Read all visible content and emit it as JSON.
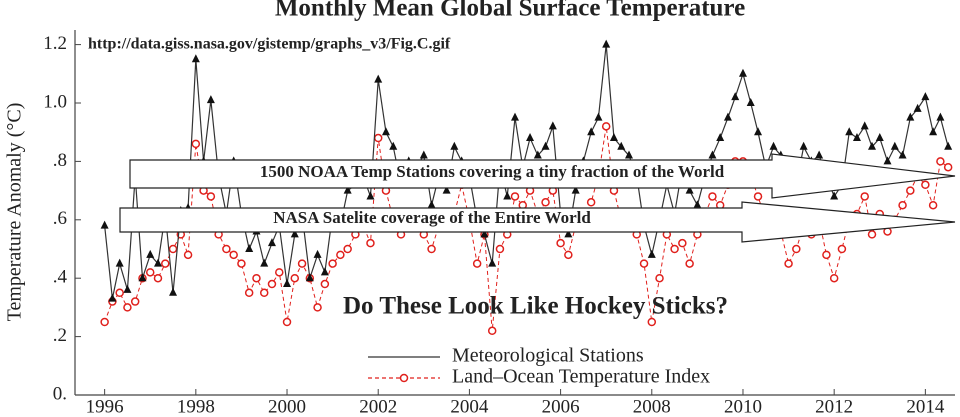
{
  "chart_data": {
    "type": "line",
    "title": "Monthly Mean Global Surface Temperature",
    "y_label": "Temperature Anomaly (°C)",
    "annotations": [
      "http://data.giss.nasa.gov/gistemp/graphs_v3/Fig.C.gif",
      "1500 NOAA Temp Stations covering a tiny fraction of the World",
      "NASA Satelite coverage of the Entire World",
      "Do These Look Like Hockey Sticks?"
    ],
    "xlim": [
      1995.35,
      2014.65
    ],
    "ylim": [
      0,
      1.25
    ],
    "xticks": [
      1996,
      1998,
      2000,
      2002,
      2004,
      2006,
      2008,
      2010,
      2012,
      2014
    ],
    "yticks": [
      {
        "value": 0,
        "label": "0."
      },
      {
        "value": 0.2,
        "label": ".2"
      },
      {
        "value": 0.4,
        "label": ".4"
      },
      {
        "value": 0.6,
        "label": ".6"
      },
      {
        "value": 0.8,
        "label": ".8"
      },
      {
        "value": 1.0,
        "label": "1.0"
      },
      1.2
    ],
    "grid": false,
    "legend": "lower center",
    "x": [
      1996.0,
      1996.17,
      1996.33,
      1996.5,
      1996.67,
      1996.83,
      1997.0,
      1997.17,
      1997.33,
      1997.5,
      1997.67,
      1997.83,
      1998.0,
      1998.17,
      1998.33,
      1998.5,
      1998.67,
      1998.83,
      1999.0,
      1999.17,
      1999.33,
      1999.5,
      1999.67,
      1999.83,
      2000.0,
      2000.17,
      2000.33,
      2000.5,
      2000.67,
      2000.83,
      2001.0,
      2001.17,
      2001.33,
      2001.5,
      2001.67,
      2001.83,
      2002.0,
      2002.17,
      2002.33,
      2002.5,
      2002.67,
      2002.83,
      2003.0,
      2003.17,
      2003.33,
      2003.5,
      2003.67,
      2003.83,
      2004.0,
      2004.17,
      2004.33,
      2004.5,
      2004.67,
      2004.83,
      2005.0,
      2005.17,
      2005.33,
      2005.5,
      2005.67,
      2005.83,
      2006.0,
      2006.17,
      2006.33,
      2006.5,
      2006.67,
      2006.83,
      2007.0,
      2007.17,
      2007.33,
      2007.5,
      2007.67,
      2007.83,
      2008.0,
      2008.17,
      2008.33,
      2008.5,
      2008.67,
      2008.83,
      2009.0,
      2009.17,
      2009.33,
      2009.5,
      2009.67,
      2009.83,
      2010.0,
      2010.17,
      2010.33,
      2010.5,
      2010.67,
      2010.83,
      2011.0,
      2011.17,
      2011.33,
      2011.5,
      2011.67,
      2011.83,
      2012.0,
      2012.17,
      2012.33,
      2012.5,
      2012.67,
      2012.83,
      2013.0,
      2013.17,
      2013.33,
      2013.5,
      2013.67,
      2013.83,
      2014.0,
      2014.17,
      2014.33,
      2014.5
    ],
    "series": [
      {
        "name": "Meteorological Stations",
        "color": "#333333",
        "marker": "triangle",
        "dashed": false,
        "values": [
          0.58,
          0.33,
          0.45,
          0.36,
          0.75,
          0.4,
          0.48,
          0.45,
          0.62,
          0.35,
          0.63,
          0.64,
          1.15,
          0.8,
          1.01,
          0.75,
          0.62,
          0.8,
          0.62,
          0.5,
          0.56,
          0.45,
          0.52,
          0.58,
          0.38,
          0.55,
          0.62,
          0.4,
          0.48,
          0.42,
          0.62,
          0.58,
          0.7,
          0.72,
          0.75,
          0.68,
          1.08,
          0.9,
          0.85,
          0.72,
          0.8,
          0.78,
          0.82,
          0.65,
          0.75,
          0.7,
          0.85,
          0.8,
          0.75,
          0.6,
          0.55,
          0.45,
          0.78,
          0.68,
          0.95,
          0.78,
          0.88,
          0.82,
          0.85,
          0.92,
          0.62,
          0.55,
          0.7,
          0.8,
          0.9,
          0.95,
          1.2,
          0.88,
          0.85,
          0.82,
          0.75,
          0.58,
          0.48,
          0.6,
          0.72,
          0.62,
          0.78,
          0.7,
          0.65,
          0.75,
          0.82,
          0.88,
          0.95,
          1.02,
          1.1,
          1.0,
          0.9,
          0.78,
          0.85,
          0.82,
          0.7,
          0.72,
          0.85,
          0.8,
          0.82,
          0.75,
          0.68,
          0.72,
          0.9,
          0.88,
          0.92,
          0.85,
          0.88,
          0.8,
          0.85,
          0.82,
          0.95,
          0.98,
          1.02,
          0.9,
          0.95,
          0.85
        ]
      },
      {
        "name": "Land–Ocean Temperature Index",
        "color": "#e0201c",
        "marker": "circle",
        "dashed": true,
        "values": [
          0.25,
          0.32,
          0.35,
          0.3,
          0.32,
          0.4,
          0.42,
          0.4,
          0.45,
          0.5,
          0.55,
          0.48,
          0.86,
          0.7,
          0.68,
          0.55,
          0.5,
          0.48,
          0.45,
          0.35,
          0.4,
          0.35,
          0.38,
          0.42,
          0.25,
          0.4,
          0.45,
          0.4,
          0.3,
          0.38,
          0.45,
          0.48,
          0.5,
          0.55,
          0.58,
          0.52,
          0.88,
          0.7,
          0.6,
          0.55,
          0.58,
          0.6,
          0.55,
          0.5,
          0.58,
          0.6,
          0.62,
          0.72,
          0.6,
          0.45,
          0.55,
          0.22,
          0.5,
          0.55,
          0.68,
          0.65,
          0.7,
          0.62,
          0.66,
          0.7,
          0.52,
          0.48,
          0.58,
          0.62,
          0.66,
          0.75,
          0.92,
          0.7,
          0.6,
          0.58,
          0.55,
          0.45,
          0.25,
          0.4,
          0.55,
          0.5,
          0.52,
          0.45,
          0.55,
          0.62,
          0.68,
          0.65,
          0.72,
          0.8,
          0.8,
          0.75,
          0.68,
          0.6,
          0.62,
          0.56,
          0.45,
          0.5,
          0.58,
          0.55,
          0.6,
          0.48,
          0.4,
          0.5,
          0.6,
          0.62,
          0.68,
          0.55,
          0.62,
          0.56,
          0.6,
          0.65,
          0.7,
          0.75,
          0.72,
          0.65,
          0.8,
          0.78
        ]
      }
    ]
  }
}
